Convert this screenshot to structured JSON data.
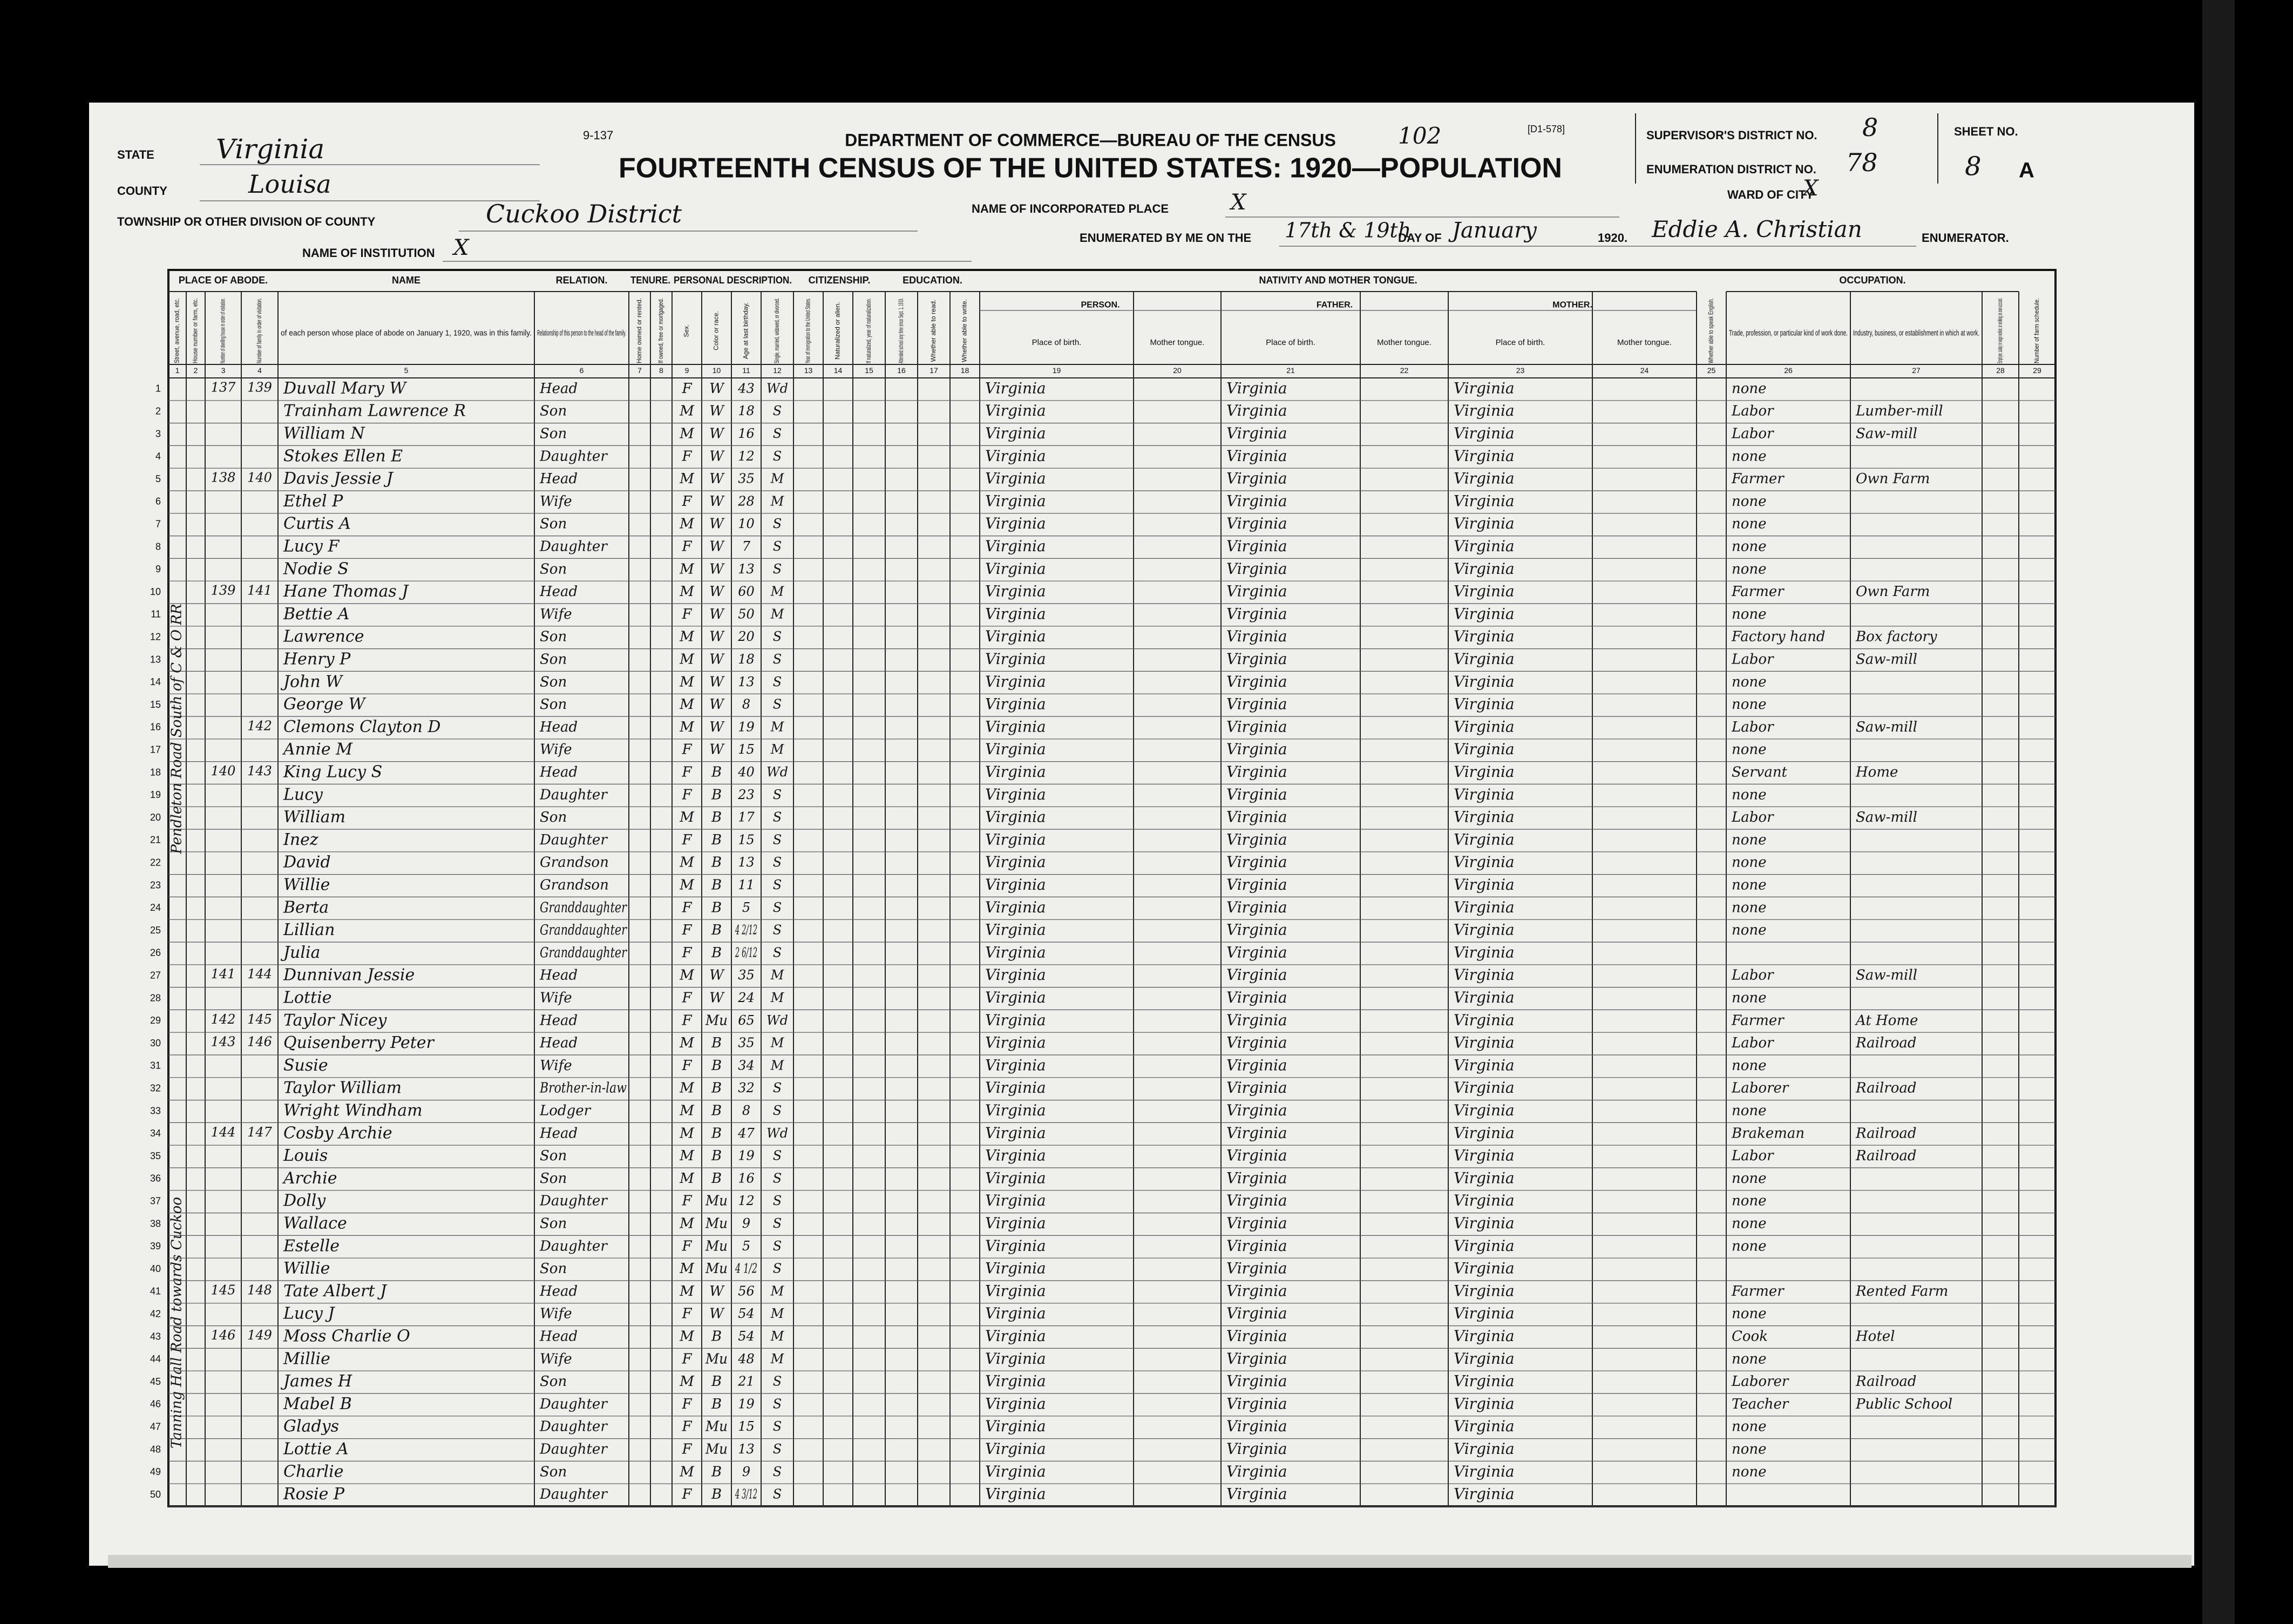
{
  "header": {
    "form_number": "9-137",
    "form_code": "[D1-578]",
    "stamp": "102",
    "department": "DEPARTMENT OF COMMERCE—BUREAU OF THE CENSUS",
    "title": "FOURTEENTH CENSUS OF THE UNITED STATES: 1920—POPULATION",
    "state_label": "STATE",
    "state": "Virginia",
    "county_label": "COUNTY",
    "county": "Louisa",
    "township_label": "TOWNSHIP OR OTHER DIVISION OF COUNTY",
    "township": "Cuckoo District",
    "institution_label": "NAME OF INSTITUTION",
    "institution": "X",
    "incorporated_label": "NAME OF INCORPORATED PLACE",
    "incorporated": "X",
    "supervisor_label": "SUPERVISOR'S DISTRICT NO.",
    "supervisor": "8",
    "enumeration_label": "ENUMERATION DISTRICT NO.",
    "enumeration": "78",
    "sheet_label": "SHEET NO.",
    "sheet": "8",
    "sheet_side": "A",
    "ward_label": "WARD OF CITY",
    "ward": "X",
    "enumerated_label": "ENUMERATED BY ME ON THE",
    "enumerated_dates": "17th & 19th",
    "day_of_label": "DAY OF",
    "month": "January",
    "year": "1920.",
    "enumerator": "Eddie A. Christian",
    "enumerator_label": "ENUMERATOR."
  },
  "groups": [
    {
      "label": "PLACE OF ABODE.",
      "from": 1,
      "to": 4
    },
    {
      "label": "NAME",
      "from": 5,
      "to": 5
    },
    {
      "label": "RELATION.",
      "from": 6,
      "to": 6
    },
    {
      "label": "TENURE.",
      "from": 7,
      "to": 8
    },
    {
      "label": "PERSONAL DESCRIPTION.",
      "from": 9,
      "to": 12
    },
    {
      "label": "CITIZENSHIP.",
      "from": 13,
      "to": 15
    },
    {
      "label": "EDUCATION.",
      "from": 16,
      "to": 18
    },
    {
      "label": "NATIVITY AND MOTHER TONGUE.",
      "from": 19,
      "to": 24
    },
    {
      "label": "OCCUPATION.",
      "from": 26,
      "to": 28
    }
  ],
  "subgroups": [
    {
      "label": "PERSON.",
      "from": 19,
      "to": 20
    },
    {
      "label": "FATHER.",
      "from": 21,
      "to": 22
    },
    {
      "label": "MOTHER.",
      "from": 23,
      "to": 24
    }
  ],
  "columns": [
    {
      "number": 1,
      "label": "Street, avenue, road, etc."
    },
    {
      "number": 2,
      "label": "House number or farm, etc."
    },
    {
      "number": 3,
      "label": "Number of dwelling house in order of visitation."
    },
    {
      "number": 4,
      "label": "Number of family in order of visitation."
    },
    {
      "number": 5,
      "label": "of each person whose place of abode on January 1, 1920, was in this family."
    },
    {
      "number": 6,
      "label": "Relationship of this person to the head of the family."
    },
    {
      "number": 7,
      "label": "Home owned or rented."
    },
    {
      "number": 8,
      "label": "If owned, free or mortgaged."
    },
    {
      "number": 9,
      "label": "Sex."
    },
    {
      "number": 10,
      "label": "Color or race."
    },
    {
      "number": 11,
      "label": "Age at last birthday."
    },
    {
      "number": 12,
      "label": "Single, married, widowed, or divorced."
    },
    {
      "number": 13,
      "label": "Year of immigration to the United States."
    },
    {
      "number": 14,
      "label": "Naturalized or alien."
    },
    {
      "number": 15,
      "label": "If naturalized, year of naturalization."
    },
    {
      "number": 16,
      "label": "Attended school any time since Sept. 1, 1919."
    },
    {
      "number": 17,
      "label": "Whether able to read."
    },
    {
      "number": 18,
      "label": "Whether able to write."
    },
    {
      "number": 19,
      "label": "Place of birth."
    },
    {
      "number": 20,
      "label": "Mother tongue."
    },
    {
      "number": 21,
      "label": "Place of birth."
    },
    {
      "number": 22,
      "label": "Mother tongue."
    },
    {
      "number": 23,
      "label": "Place of birth."
    },
    {
      "number": 24,
      "label": "Mother tongue."
    },
    {
      "number": 25,
      "label": "Whether able to speak English."
    },
    {
      "number": 26,
      "label": "Trade, profession, or particular kind of work done."
    },
    {
      "number": 27,
      "label": "Industry, business, or establishment in which at work."
    },
    {
      "number": 28,
      "label": "Employer, salary or wage worker, or working on own account."
    },
    {
      "number": 29,
      "label": "Number of farm schedule."
    }
  ],
  "households": [
    {
      "line": 1,
      "dwelling": 137,
      "family": 139
    },
    {
      "line": 5,
      "dwelling": 138,
      "family": 140
    },
    {
      "line": 10,
      "dwelling": 139,
      "family": 141
    },
    {
      "line": 16,
      "family": 142
    },
    {
      "line": 18,
      "dwelling": 140,
      "family": 143
    },
    {
      "line": 27,
      "dwelling": 141,
      "family": 144
    },
    {
      "line": 29,
      "dwelling": 142,
      "family": 145
    },
    {
      "line": 30,
      "dwelling": 143,
      "family": 146
    },
    {
      "line": 34,
      "dwelling": 144,
      "family": 147
    },
    {
      "line": 41,
      "dwelling": 145,
      "family": 148
    },
    {
      "line": 43,
      "dwelling": 146,
      "family": 149
    }
  ],
  "rows": [
    [
      1,
      "Duvall Mary W",
      "Head",
      "F",
      "W",
      43,
      "Wd",
      "Virginia",
      "Virginia",
      "Virginia",
      "none",
      null
    ],
    [
      2,
      "Trainham Lawrence R",
      "Son",
      "M",
      "W",
      18,
      "S",
      "Virginia",
      "Virginia",
      "Virginia",
      "Labor",
      "Lumber-mill"
    ],
    [
      3,
      "William N",
      "Son",
      "M",
      "W",
      16,
      "S",
      "Virginia",
      "Virginia",
      "Virginia",
      "Labor",
      "Saw-mill"
    ],
    [
      4,
      "Stokes Ellen E",
      "Daughter",
      "F",
      "W",
      12,
      "S",
      "Virginia",
      "Virginia",
      "Virginia",
      "none",
      null
    ],
    [
      5,
      "Davis Jessie J",
      "Head",
      "M",
      "W",
      35,
      "M",
      "Virginia",
      "Virginia",
      "Virginia",
      "Farmer",
      "Own Farm"
    ],
    [
      6,
      "Ethel P",
      "Wife",
      "F",
      "W",
      28,
      "M",
      "Virginia",
      "Virginia",
      "Virginia",
      "none",
      null
    ],
    [
      7,
      "Curtis A",
      "Son",
      "M",
      "W",
      10,
      "S",
      "Virginia",
      "Virginia",
      "Virginia",
      "none",
      null
    ],
    [
      8,
      "Lucy F",
      "Daughter",
      "F",
      "W",
      7,
      "S",
      "Virginia",
      "Virginia",
      "Virginia",
      "none",
      null
    ],
    [
      9,
      "Nodie S",
      "Son",
      "M",
      "W",
      13,
      "S",
      "Virginia",
      "Virginia",
      "Virginia",
      "none",
      null
    ],
    [
      10,
      "Hane Thomas J",
      "Head",
      "M",
      "W",
      60,
      "M",
      "Virginia",
      "Virginia",
      "Virginia",
      "Farmer",
      "Own Farm"
    ],
    [
      11,
      "Bettie A",
      "Wife",
      "F",
      "W",
      50,
      "M",
      "Virginia",
      "Virginia",
      "Virginia",
      "none",
      null
    ],
    [
      12,
      "Lawrence",
      "Son",
      "M",
      "W",
      20,
      "S",
      "Virginia",
      "Virginia",
      "Virginia",
      "Factory hand",
      "Box factory"
    ],
    [
      13,
      "Henry P",
      "Son",
      "M",
      "W",
      18,
      "S",
      "Virginia",
      "Virginia",
      "Virginia",
      "Labor",
      "Saw-mill"
    ],
    [
      14,
      "John W",
      "Son",
      "M",
      "W",
      13,
      "S",
      "Virginia",
      "Virginia",
      "Virginia",
      "none",
      null
    ],
    [
      15,
      "George W",
      "Son",
      "M",
      "W",
      8,
      "S",
      "Virginia",
      "Virginia",
      "Virginia",
      "none",
      null
    ],
    [
      16,
      "Clemons Clayton D",
      "Head",
      "M",
      "W",
      19,
      "M",
      "Virginia",
      "Virginia",
      "Virginia",
      "Labor",
      "Saw-mill"
    ],
    [
      17,
      "Annie M",
      "Wife",
      "F",
      "W",
      15,
      "M",
      "Virginia",
      "Virginia",
      "Virginia",
      "none",
      null
    ],
    [
      18,
      "King Lucy S",
      "Head",
      "F",
      "B",
      40,
      "Wd",
      "Virginia",
      "Virginia",
      "Virginia",
      "Servant",
      "Home"
    ],
    [
      19,
      "Lucy",
      "Daughter",
      "F",
      "B",
      23,
      "S",
      "Virginia",
      "Virginia",
      "Virginia",
      "none",
      null
    ],
    [
      20,
      "William",
      "Son",
      "M",
      "B",
      17,
      "S",
      "Virginia",
      "Virginia",
      "Virginia",
      "Labor",
      "Saw-mill"
    ],
    [
      21,
      "Inez",
      "Daughter",
      "F",
      "B",
      15,
      "S",
      "Virginia",
      "Virginia",
      "Virginia",
      "none",
      null
    ],
    [
      22,
      "David",
      "Grandson",
      "M",
      "B",
      13,
      "S",
      "Virginia",
      "Virginia",
      "Virginia",
      "none",
      null
    ],
    [
      23,
      "Willie",
      "Grandson",
      "M",
      "B",
      11,
      "S",
      "Virginia",
      "Virginia",
      "Virginia",
      "none",
      null
    ],
    [
      24,
      "Berta",
      "Granddaughter",
      "F",
      "B",
      5,
      "S",
      "Virginia",
      "Virginia",
      "Virginia",
      "none",
      null
    ],
    [
      25,
      "Lillian",
      "Granddaughter",
      "F",
      "B",
      "4 2/12",
      "S",
      "Virginia",
      "Virginia",
      "Virginia",
      "none",
      null
    ],
    [
      26,
      "Julia",
      "Granddaughter",
      "F",
      "B",
      "2 6/12",
      "S",
      "Virginia",
      "Virginia",
      "Virginia",
      null,
      null
    ],
    [
      27,
      "Dunnivan Jessie",
      "Head",
      "M",
      "W",
      35,
      "M",
      "Virginia",
      "Virginia",
      "Virginia",
      "Labor",
      "Saw-mill"
    ],
    [
      28,
      "Lottie",
      "Wife",
      "F",
      "W",
      24,
      "M",
      "Virginia",
      "Virginia",
      "Virginia",
      "none",
      null
    ],
    [
      29,
      "Taylor Nicey",
      "Head",
      "F",
      "Mu",
      65,
      "Wd",
      "Virginia",
      "Virginia",
      "Virginia",
      "Farmer",
      "At Home"
    ],
    [
      30,
      "Quisenberry Peter",
      "Head",
      "M",
      "B",
      35,
      "M",
      "Virginia",
      "Virginia",
      "Virginia",
      "Labor",
      "Railroad"
    ],
    [
      31,
      "Susie",
      "Wife",
      "F",
      "B",
      34,
      "M",
      "Virginia",
      "Virginia",
      "Virginia",
      "none",
      null
    ],
    [
      32,
      "Taylor William",
      "Brother-in-law",
      "M",
      "B",
      32,
      "S",
      "Virginia",
      "Virginia",
      "Virginia",
      "Laborer",
      "Railroad"
    ],
    [
      33,
      "Wright Windham",
      "Lodger",
      "M",
      "B",
      8,
      "S",
      "Virginia",
      "Virginia",
      "Virginia",
      "none",
      null
    ],
    [
      34,
      "Cosby Archie",
      "Head",
      "M",
      "B",
      47,
      "Wd",
      "Virginia",
      "Virginia",
      "Virginia",
      "Brakeman",
      "Railroad"
    ],
    [
      35,
      "Louis",
      "Son",
      "M",
      "B",
      19,
      "S",
      "Virginia",
      "Virginia",
      "Virginia",
      "Labor",
      "Railroad"
    ],
    [
      36,
      "Archie",
      "Son",
      "M",
      "B",
      16,
      "S",
      "Virginia",
      "Virginia",
      "Virginia",
      "none",
      null
    ],
    [
      37,
      "Dolly",
      "Daughter",
      "F",
      "Mu",
      12,
      "S",
      "Virginia",
      "Virginia",
      "Virginia",
      "none",
      null
    ],
    [
      38,
      "Wallace",
      "Son",
      "M",
      "Mu",
      9,
      "S",
      "Virginia",
      "Virginia",
      "Virginia",
      "none",
      null
    ],
    [
      39,
      "Estelle",
      "Daughter",
      "F",
      "Mu",
      5,
      "S",
      "Virginia",
      "Virginia",
      "Virginia",
      "none",
      null
    ],
    [
      40,
      "Willie",
      "Son",
      "M",
      "Mu",
      "4 1/2",
      "S",
      "Virginia",
      "Virginia",
      "Virginia",
      null,
      null
    ],
    [
      41,
      "Tate Albert J",
      "Head",
      "M",
      "W",
      56,
      "M",
      "Virginia",
      "Virginia",
      "Virginia",
      "Farmer",
      "Rented Farm"
    ],
    [
      42,
      "Lucy J",
      "Wife",
      "F",
      "W",
      54,
      "M",
      "Virginia",
      "Virginia",
      "Virginia",
      "none",
      null
    ],
    [
      43,
      "Moss Charlie O",
      "Head",
      "M",
      "B",
      54,
      "M",
      "Virginia",
      "Virginia",
      "Virginia",
      "Cook",
      "Hotel"
    ],
    [
      44,
      "Millie",
      "Wife",
      "F",
      "Mu",
      48,
      "M",
      "Virginia",
      "Virginia",
      "Virginia",
      "none",
      null
    ],
    [
      45,
      "James H",
      "Son",
      "M",
      "B",
      21,
      "S",
      "Virginia",
      "Virginia",
      "Virginia",
      "Laborer",
      "Railroad"
    ],
    [
      46,
      "Mabel B",
      "Daughter",
      "F",
      "B",
      19,
      "S",
      "Virginia",
      "Virginia",
      "Virginia",
      "Teacher",
      "Public School"
    ],
    [
      47,
      "Gladys",
      "Daughter",
      "F",
      "Mu",
      15,
      "S",
      "Virginia",
      "Virginia",
      "Virginia",
      "none",
      null
    ],
    [
      48,
      "Lottie A",
      "Daughter",
      "F",
      "Mu",
      13,
      "S",
      "Virginia",
      "Virginia",
      "Virginia",
      "none",
      null
    ],
    [
      49,
      "Charlie",
      "Son",
      "M",
      "B",
      9,
      "S",
      "Virginia",
      "Virginia",
      "Virginia",
      "none",
      null
    ],
    [
      50,
      "Rosie P",
      "Daughter",
      "F",
      "B",
      "4 3/12",
      "S",
      "Virginia",
      "Virginia",
      "Virginia",
      null,
      null
    ]
  ],
  "margin_notes": [
    "Pendleton Road South of C & O RR",
    "Tanning Hall Road towards Cuckoo"
  ]
}
